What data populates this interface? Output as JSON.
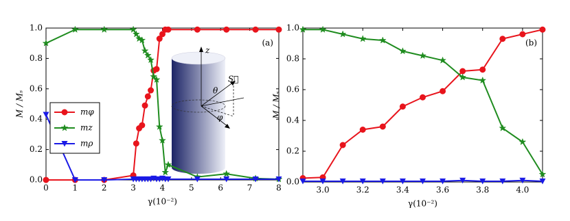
{
  "chart_data": [
    {
      "type": "line",
      "panel_label": "(a)",
      "x_label": "γ(10⁻²)",
      "y_label": "M / Mₛ",
      "x": [
        0,
        1,
        2,
        3,
        3.1,
        3.2,
        3.3,
        3.4,
        3.5,
        3.6,
        3.7,
        3.8,
        3.9,
        4.0,
        4.1,
        4.2,
        5.2,
        6.2,
        7.2,
        8
      ],
      "series": [
        {
          "name": "mφ",
          "color": "#e8141c",
          "marker": "circle",
          "values": [
            0.0,
            0.0,
            0.0,
            0.03,
            0.24,
            0.34,
            0.36,
            0.49,
            0.55,
            0.59,
            0.72,
            0.73,
            0.93,
            0.96,
            0.99,
            0.99,
            0.99,
            0.99,
            0.99,
            0.99
          ]
        },
        {
          "name": "mz",
          "color": "#1f8c1f",
          "marker": "star",
          "values": [
            0.9,
            0.99,
            0.99,
            0.99,
            0.96,
            0.93,
            0.92,
            0.85,
            0.82,
            0.79,
            0.68,
            0.66,
            0.35,
            0.26,
            0.05,
            0.1,
            0.02,
            0.04,
            0.01,
            0.005
          ]
        },
        {
          "name": "mρ",
          "color": "#1a1ae6",
          "marker": "triangle",
          "values": [
            0.43,
            0.0,
            0.0,
            0.005,
            0.005,
            0.005,
            0.005,
            0.005,
            0.005,
            0.005,
            0.01,
            0.005,
            0.005,
            0.01,
            0.005,
            0.005,
            0.005,
            0.005,
            0.005,
            0.005
          ]
        }
      ],
      "xlim": [
        0,
        8
      ],
      "xticks": [
        0,
        1,
        2,
        3,
        4,
        5,
        6,
        7,
        8
      ],
      "ylim": [
        0,
        1
      ],
      "yticks": [
        {
          "value": 0,
          "label": "0.0"
        },
        0.2,
        0.4,
        0.6,
        0.8,
        {
          "value": 1,
          "label": "1.0"
        }
      ],
      "legend": "left",
      "inset_labels": [
        "z",
        "S⃗",
        "θ",
        "φ"
      ]
    },
    {
      "type": "line",
      "panel_label": "(b)",
      "x_label": "γ(10⁻²)",
      "y_label": "M / Mₛ",
      "x": [
        2.9,
        3.0,
        3.1,
        3.2,
        3.3,
        3.4,
        3.5,
        3.6,
        3.7,
        3.8,
        3.9,
        4.0,
        4.1
      ],
      "series": [
        {
          "name": "mφ",
          "color": "#e8141c",
          "marker": "circle",
          "values": [
            0.025,
            0.03,
            0.24,
            0.34,
            0.36,
            0.49,
            0.55,
            0.59,
            0.72,
            0.73,
            0.93,
            0.96,
            0.99
          ]
        },
        {
          "name": "mz",
          "color": "#1f8c1f",
          "marker": "star",
          "values": [
            0.99,
            0.99,
            0.96,
            0.93,
            0.92,
            0.85,
            0.82,
            0.79,
            0.68,
            0.66,
            0.35,
            0.26,
            0.05
          ]
        },
        {
          "name": "mρ",
          "color": "#1a1ae6",
          "marker": "triangle",
          "values": [
            0.005,
            0.005,
            0.005,
            0.005,
            0.005,
            0.005,
            0.005,
            0.005,
            0.01,
            0.005,
            0.005,
            0.01,
            0.005
          ]
        }
      ],
      "xlim": [
        2.9,
        4.1
      ],
      "xticks": [
        {
          "value": 3,
          "label": "3.0"
        },
        3.2,
        3.4,
        3.6,
        3.8,
        {
          "value": 4,
          "label": "4.0"
        }
      ],
      "ylim": [
        0,
        1
      ],
      "yticks": [
        {
          "value": 0,
          "label": "0.0"
        },
        0.2,
        0.4,
        0.6,
        0.8,
        {
          "value": 1,
          "label": "1.0"
        }
      ]
    }
  ]
}
